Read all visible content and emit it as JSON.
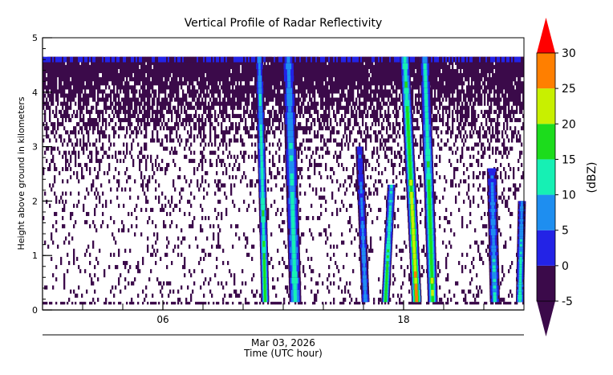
{
  "chart_data": {
    "type": "heatmap",
    "title": "Vertical Profile of Radar Reflectivity",
    "ylabel": "Height above ground in kilometers",
    "xlabel": "Time (UTC hour)",
    "date_label": "Mar 03, 2026",
    "colorbar_label": "(dBZ)",
    "x_unit": "hour",
    "xlim": [
      0,
      24
    ],
    "ylim": [
      0,
      5
    ],
    "x_ticks": [
      {
        "value": 6,
        "label": "06"
      },
      {
        "value": 18,
        "label": "18"
      }
    ],
    "x_minor_ticks": [
      0,
      2,
      4,
      6,
      8,
      10,
      12,
      14,
      16,
      18,
      20,
      22,
      24
    ],
    "y_ticks": [
      {
        "value": 0,
        "label": "0"
      },
      {
        "value": 1,
        "label": "1"
      },
      {
        "value": 2,
        "label": "2"
      },
      {
        "value": 3,
        "label": "3"
      },
      {
        "value": 4,
        "label": "4"
      },
      {
        "value": 5,
        "label": "5"
      }
    ],
    "colorbar": {
      "range": [
        -5,
        30
      ],
      "tick_labels": [
        "-5",
        "0",
        "5",
        "10",
        "15",
        "20",
        "25",
        "30"
      ],
      "bins": [
        {
          "from": -5,
          "to": 0,
          "color": "#3b0a4a"
        },
        {
          "from": 0,
          "to": 5,
          "color": "#2323e6"
        },
        {
          "from": 5,
          "to": 10,
          "color": "#1e8ef0"
        },
        {
          "from": 10,
          "to": 15,
          "color": "#16f0b4"
        },
        {
          "from": 15,
          "to": 20,
          "color": "#1cdc1c"
        },
        {
          "from": 20,
          "to": 25,
          "color": "#c8f000"
        },
        {
          "from": 25,
          "to": 30,
          "color": "#ff7f00"
        }
      ],
      "extend_low_color": "#3b0a4a",
      "extend_high_color": "#ff0000"
    },
    "echo_top_km": 4.65,
    "clutter_layer_top_km": 0.15,
    "background_field": {
      "value_dBZ": -3,
      "density_profile": [
        {
          "height_km": 0.0,
          "coverage": 0.12
        },
        {
          "height_km": 1.0,
          "coverage": 0.1
        },
        {
          "height_km": 2.0,
          "coverage": 0.14
        },
        {
          "height_km": 3.0,
          "coverage": 0.3
        },
        {
          "height_km": 3.5,
          "coverage": 0.55
        },
        {
          "height_km": 4.0,
          "coverage": 0.8
        },
        {
          "height_km": 4.3,
          "coverage": 0.97
        }
      ]
    },
    "precipitation_shafts": [
      {
        "start_hour": 10.9,
        "end_hour": 11.3,
        "top_km": 4.65,
        "bottom_km": 0.15,
        "tilt_hours": -0.3,
        "peak_dBZ": 17
      },
      {
        "start_hour": 12.3,
        "end_hour": 12.9,
        "top_km": 4.65,
        "bottom_km": 0.15,
        "tilt_hours": -0.35,
        "peak_dBZ": 14
      },
      {
        "start_hour": 15.9,
        "end_hour": 16.3,
        "top_km": 3.0,
        "bottom_km": 0.15,
        "tilt_hours": -0.3,
        "peak_dBZ": 9
      },
      {
        "start_hour": 16.9,
        "end_hour": 17.3,
        "top_km": 2.3,
        "bottom_km": 0.15,
        "tilt_hours": 0.3,
        "peak_dBZ": 19
      },
      {
        "start_hour": 18.4,
        "end_hour": 18.9,
        "top_km": 4.65,
        "bottom_km": 0.15,
        "tilt_hours": -0.6,
        "peak_dBZ": 26
      },
      {
        "start_hour": 19.2,
        "end_hour": 19.7,
        "top_km": 4.65,
        "bottom_km": 0.15,
        "tilt_hours": -0.4,
        "peak_dBZ": 20
      },
      {
        "start_hour": 22.3,
        "end_hour": 22.8,
        "top_km": 2.6,
        "bottom_km": 0.15,
        "tilt_hours": -0.15,
        "peak_dBZ": 11
      },
      {
        "start_hour": 23.6,
        "end_hour": 24.0,
        "top_km": 2.0,
        "bottom_km": 0.15,
        "tilt_hours": 0.1,
        "peak_dBZ": 14
      }
    ]
  }
}
